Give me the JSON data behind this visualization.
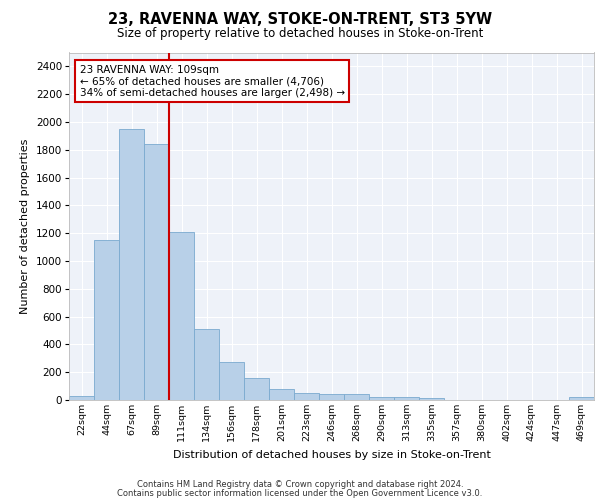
{
  "title": "23, RAVENNA WAY, STOKE-ON-TRENT, ST3 5YW",
  "subtitle": "Size of property relative to detached houses in Stoke-on-Trent",
  "xlabel": "Distribution of detached houses by size in Stoke-on-Trent",
  "ylabel": "Number of detached properties",
  "categories": [
    "22sqm",
    "44sqm",
    "67sqm",
    "89sqm",
    "111sqm",
    "134sqm",
    "156sqm",
    "178sqm",
    "201sqm",
    "223sqm",
    "246sqm",
    "268sqm",
    "290sqm",
    "313sqm",
    "335sqm",
    "357sqm",
    "380sqm",
    "402sqm",
    "424sqm",
    "447sqm",
    "469sqm"
  ],
  "values": [
    30,
    1150,
    1950,
    1840,
    1210,
    510,
    270,
    155,
    80,
    50,
    45,
    40,
    25,
    20,
    15,
    0,
    0,
    0,
    0,
    0,
    20
  ],
  "bar_color": "#b8d0e8",
  "bar_edge_color": "#7aaacf",
  "vline_x": 3.5,
  "vline_color": "#cc0000",
  "annotation_text": "23 RAVENNA WAY: 109sqm\n← 65% of detached houses are smaller (4,706)\n34% of semi-detached houses are larger (2,498) →",
  "annotation_box_color": "#ffffff",
  "annotation_box_edge": "#cc0000",
  "ylim": [
    0,
    2500
  ],
  "yticks": [
    0,
    200,
    400,
    600,
    800,
    1000,
    1200,
    1400,
    1600,
    1800,
    2000,
    2200,
    2400
  ],
  "background_color": "#eef2f9",
  "footer1": "Contains HM Land Registry data © Crown copyright and database right 2024.",
  "footer2": "Contains public sector information licensed under the Open Government Licence v3.0."
}
